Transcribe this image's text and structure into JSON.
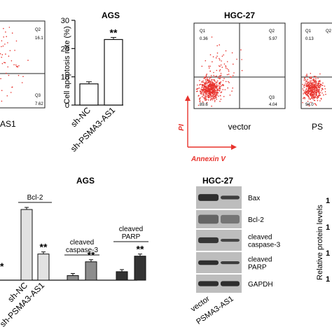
{
  "colors": {
    "dot_red": "#e8322c",
    "pi_arrow": "#e8322c",
    "bar_gray_light": "#e2e2e2",
    "bar_gray_mid": "#8c8c8c",
    "bar_dark": "#333333",
    "blot_dark": "#1e1e1e",
    "blot_bg": "#bdbdbd"
  },
  "panel_flow_left": {
    "q2_label": "Q2",
    "q2_value": "16.1",
    "q3_label": "Q3",
    "q3_value": "7.62",
    "sample_label": "AS1"
  },
  "panel_apoptosis": {
    "title": "AGS",
    "ylabel": "Cell apoptosis rate (%)",
    "significance": "**"
  },
  "panel_flow_hgc": {
    "title": "HGC-27",
    "x_axis_label": "Annexin V",
    "y_axis_label": "PI",
    "plot1": {
      "q1_label": "Q1",
      "q1_value": "0.36",
      "q2_label": "Q2",
      "q2_value": "5.97",
      "q3_label": "Q3",
      "q3_value": "4.04",
      "q4_value": "89.6",
      "sample_label": "vector"
    },
    "plot2": {
      "q1_label": "Q1",
      "q1_value": "0.13",
      "q2_label": "Q2",
      "q3_value": "94.0",
      "sample_label": "PS"
    }
  },
  "panel_ags_protein": {
    "title": "AGS",
    "left_significance": "*",
    "labels": [
      "Bcl-2",
      "cleaved\ncaspase-3",
      "cleaved\nPARP"
    ]
  },
  "panel_blot": {
    "title": "HGC-27",
    "bands": [
      "Bax",
      "Bcl-2",
      "cleaved caspase-3",
      "cleaved PARP",
      "GAPDH"
    ],
    "band_label_lines": [
      [
        "Bax"
      ],
      [
        "Bcl-2"
      ],
      [
        "cleaved",
        "caspase-3"
      ],
      [
        "cleaved",
        "PARP"
      ],
      [
        "GAPDH"
      ]
    ],
    "lanes": [
      "vector",
      "PSMA3-AS1"
    ]
  },
  "panel_right_edge": {
    "ylabel": "Relative protein levels",
    "tick_label": "1"
  },
  "chart_data": [
    {
      "type": "bar",
      "title": "AGS",
      "ylabel": "Cell apoptosis rate (%)",
      "categories": [
        "sh-NC",
        "sh-PSMA3-AS1"
      ],
      "values": [
        7.5,
        23.2
      ],
      "ylim": [
        0,
        30
      ],
      "yticks": [
        0,
        10,
        20,
        30
      ],
      "annotations": [
        "",
        "**"
      ]
    },
    {
      "type": "bar",
      "title": "AGS",
      "categories": [
        "sh-NC",
        "sh-PSMA3-AS1"
      ],
      "series": [
        {
          "name": "Bcl-2",
          "values": [
            1.0,
            0.37
          ],
          "annotations": [
            "",
            "**"
          ]
        },
        {
          "name": "cleaved caspase-3",
          "values": [
            0.065,
            0.26
          ],
          "annotations": [
            "",
            "**"
          ]
        },
        {
          "name": "cleaved PARP",
          "values": [
            0.12,
            0.34
          ],
          "annotations": [
            "",
            "**"
          ]
        }
      ],
      "ylim": [
        0,
        1.1
      ]
    }
  ]
}
